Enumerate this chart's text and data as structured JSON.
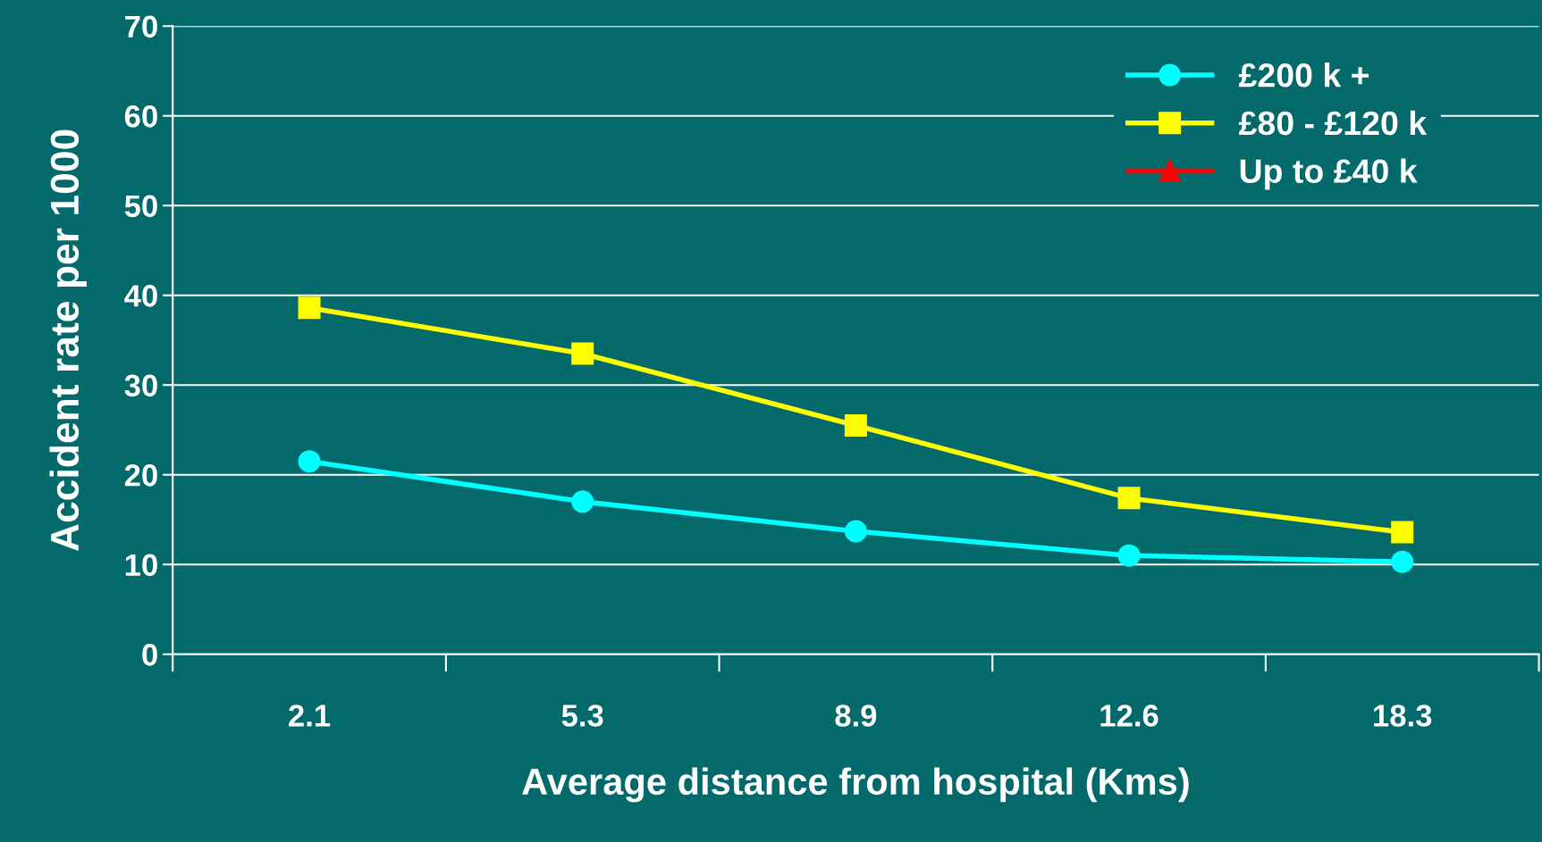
{
  "chart_data": {
    "type": "line",
    "xlabel": "Average distance from hospital (Kms)",
    "ylabel": "Accident rate per 1000",
    "categories": [
      "2.1",
      "5.3",
      "8.9",
      "12.6",
      "18.3"
    ],
    "series": [
      {
        "name": "£200 k +",
        "color": "#00ffff",
        "marker": "circle",
        "values": [
          21.5,
          17.0,
          13.7,
          11.0,
          10.3
        ]
      },
      {
        "name": "£80 - £120 k",
        "color": "#ffff00",
        "marker": "square",
        "values": [
          38.6,
          33.5,
          25.5,
          17.4,
          13.6
        ]
      },
      {
        "name": "Up to £40 k",
        "color": "#ff0000",
        "marker": "triangle",
        "values": [
          null,
          null,
          null,
          null,
          null
        ]
      }
    ],
    "ylim": [
      0,
      70
    ],
    "yticks": [
      0,
      10,
      20,
      30,
      40,
      50,
      60,
      70
    ],
    "grid": "y",
    "legend": "top right",
    "line_style": "solid"
  }
}
